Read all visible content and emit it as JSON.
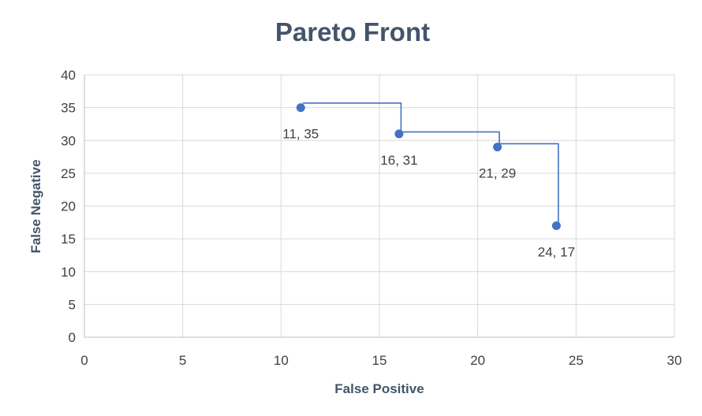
{
  "chart_data": {
    "type": "scatter",
    "title": "Pareto Front",
    "xlabel": "False Positive",
    "ylabel": "False Negative",
    "xlim": [
      0,
      30
    ],
    "ylim": [
      0,
      40
    ],
    "xticks": [
      0,
      5,
      10,
      15,
      20,
      25,
      30
    ],
    "yticks": [
      0,
      5,
      10,
      15,
      20,
      25,
      30,
      35,
      40
    ],
    "grid": true,
    "legend": "none",
    "series": [
      {
        "points": [
          {
            "x": 11,
            "y": 35,
            "label": "11, 35"
          },
          {
            "x": 16,
            "y": 31,
            "label": "16, 31"
          },
          {
            "x": 21,
            "y": 29,
            "label": "21, 29"
          },
          {
            "x": 24,
            "y": 17,
            "label": "24, 17"
          }
        ],
        "color": "#4472c4"
      }
    ],
    "step_line": {
      "color": "#4472c4",
      "path": [
        {
          "x": 11.1,
          "y": 35.7
        },
        {
          "x": 16.1,
          "y": 35.7
        },
        {
          "x": 16.1,
          "y": 31.3
        },
        {
          "x": 21.1,
          "y": 31.3
        },
        {
          "x": 21.1,
          "y": 29.5
        },
        {
          "x": 24.1,
          "y": 29.5
        },
        {
          "x": 24.1,
          "y": 17
        }
      ]
    }
  }
}
